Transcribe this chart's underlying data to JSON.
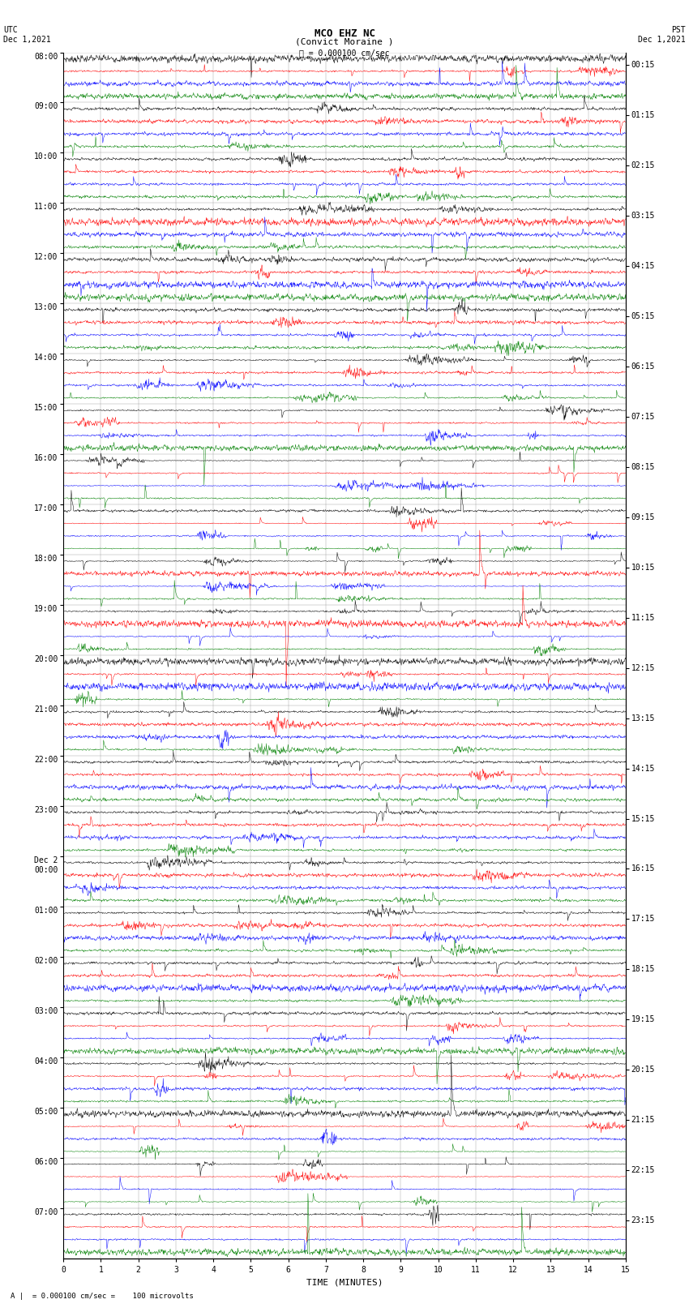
{
  "title_line1": "MCO EHZ NC",
  "title_line2": "(Convict Moraine )",
  "scale_label": "= 0.000100 cm/sec",
  "left_label_top": "UTC",
  "left_label_date": "Dec 1,2021",
  "right_label_top": "PST",
  "right_label_date": "Dec 1,2021",
  "xlabel": "TIME (MINUTES)",
  "footnote": "= 0.000100 cm/sec =    100 microvolts",
  "utc_labels": [
    "08:00",
    "09:00",
    "10:00",
    "11:00",
    "12:00",
    "13:00",
    "14:00",
    "15:00",
    "16:00",
    "17:00",
    "18:00",
    "19:00",
    "20:00",
    "21:00",
    "22:00",
    "23:00",
    "Dec 2\n00:00",
    "01:00",
    "02:00",
    "03:00",
    "04:00",
    "05:00",
    "06:00",
    "07:00"
  ],
  "pst_labels": [
    "00:15",
    "01:15",
    "02:15",
    "03:15",
    "04:15",
    "05:15",
    "06:15",
    "07:15",
    "08:15",
    "09:15",
    "10:15",
    "11:15",
    "12:15",
    "13:15",
    "14:15",
    "15:15",
    "16:15",
    "17:15",
    "18:15",
    "19:15",
    "20:15",
    "21:15",
    "22:15",
    "23:15"
  ],
  "trace_colors": [
    "black",
    "red",
    "blue",
    "green"
  ],
  "background_color": "white",
  "grid_color": "#888888",
  "num_hours": 24,
  "traces_per_hour": 4,
  "x_min": 0,
  "x_max": 15,
  "x_ticks": [
    0,
    1,
    2,
    3,
    4,
    5,
    6,
    7,
    8,
    9,
    10,
    11,
    12,
    13,
    14,
    15
  ],
  "fig_width": 8.5,
  "fig_height": 16.13,
  "dpi": 100,
  "title_fontsize": 9,
  "label_fontsize": 7,
  "axis_fontsize": 7,
  "xlabel_fontsize": 8
}
